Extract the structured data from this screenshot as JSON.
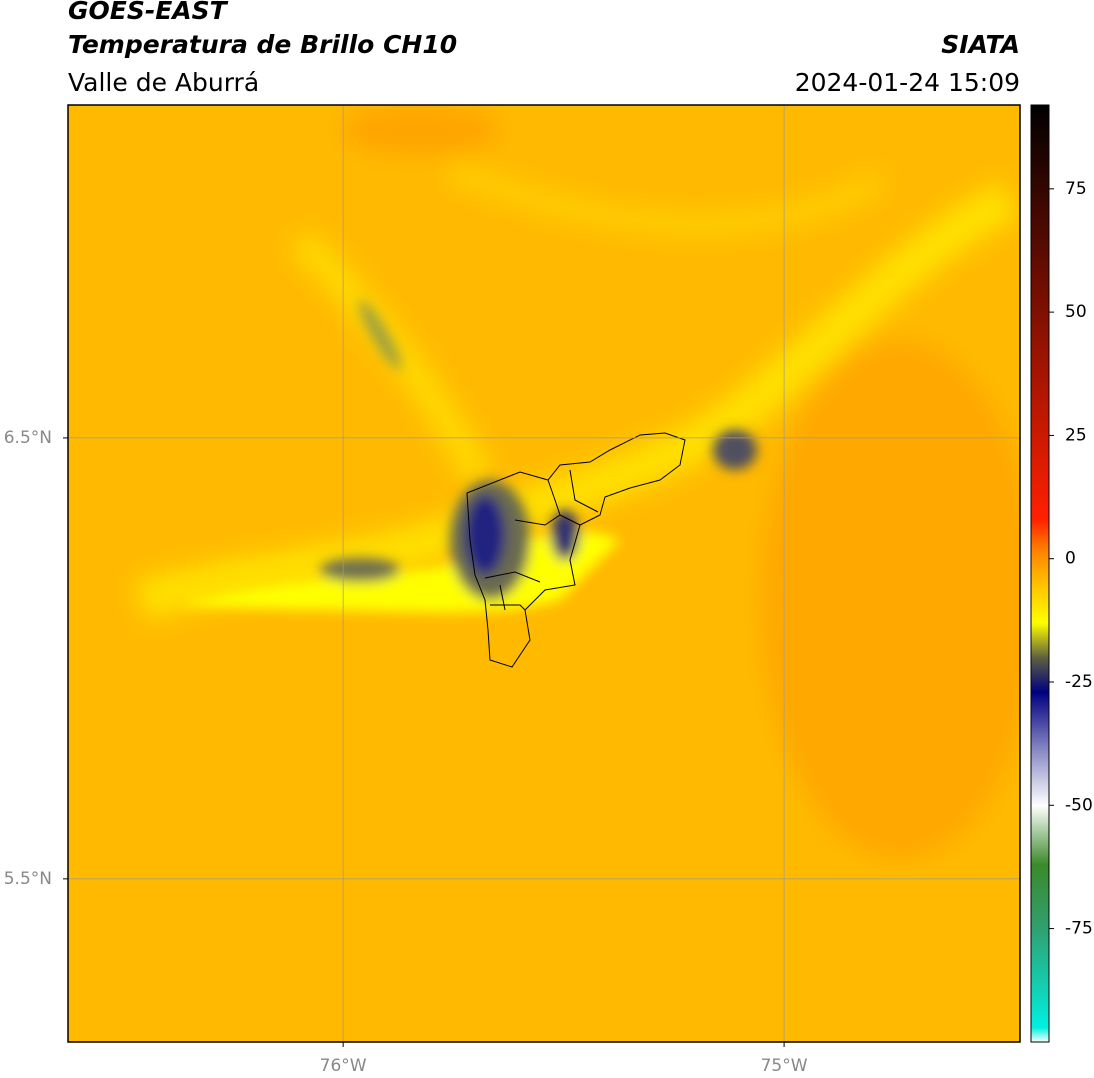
{
  "header": {
    "title": "GOES-EAST",
    "subtitle": "Temperatura de Brillo CH10",
    "region": "Valle de Aburrá",
    "source": "SIATA",
    "timestamp": "2024-01-24 15:09"
  },
  "map": {
    "xlim": [
      -76.624,
      -74.465
    ],
    "ylim": [
      5.13,
      7.255
    ],
    "xticks": [
      {
        "value": -76,
        "label": "76°W"
      },
      {
        "value": -75,
        "label": "75°W"
      }
    ],
    "yticks": [
      {
        "value": 6.5,
        "label": "6.5°N"
      },
      {
        "value": 5.5,
        "label": "5.5°N"
      }
    ],
    "grid": true
  },
  "colorbar": {
    "lim": [
      -98,
      92
    ],
    "ticks": [
      75,
      50,
      25,
      0,
      -25,
      -50,
      -75
    ],
    "stops": [
      {
        "value": -98,
        "color": "#ffffff"
      },
      {
        "value": -95,
        "color": "#00f0e0"
      },
      {
        "value": -75,
        "color": "#30a070"
      },
      {
        "value": -62,
        "color": "#3a8a2a"
      },
      {
        "value": -50,
        "color": "#ffffff"
      },
      {
        "value": -38,
        "color": "#8080c0"
      },
      {
        "value": -27,
        "color": "#000080"
      },
      {
        "value": -20,
        "color": "#606040"
      },
      {
        "value": -13,
        "color": "#ffff00"
      },
      {
        "value": -5,
        "color": "#ffc000"
      },
      {
        "value": 2,
        "color": "#ff8000"
      },
      {
        "value": 8,
        "color": "#ff2000"
      },
      {
        "value": 92,
        "color": "#000000"
      }
    ]
  }
}
